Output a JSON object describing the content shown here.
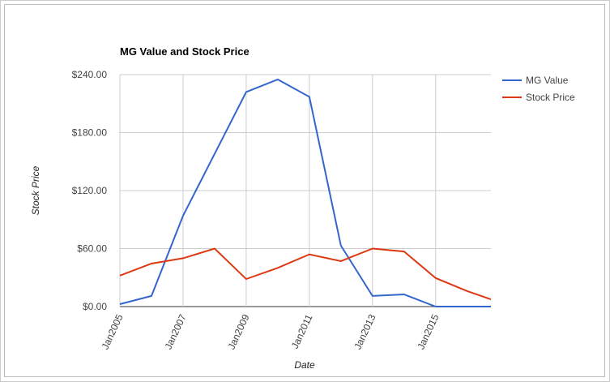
{
  "chart_data": {
    "type": "line",
    "title": "MG Value and Stock Price",
    "xlabel": "Date",
    "ylabel": "Stock Price",
    "x": [
      2005,
      2006,
      2007,
      2008,
      2009,
      2010,
      2011,
      2012,
      2013,
      2014,
      2015,
      2016,
      2016.75
    ],
    "series": [
      {
        "name": "MG Value",
        "color": "#3366cc",
        "values": [
          2.5,
          11,
          94,
          158,
          222,
          235,
          217,
          63,
          11,
          12.6,
          0,
          0,
          0
        ]
      },
      {
        "name": "Stock Price",
        "color": "#dc3912",
        "values": [
          32,
          44.5,
          50,
          60,
          28.5,
          40,
          54,
          47,
          60,
          57,
          29.5,
          16,
          7.5
        ]
      }
    ],
    "xlim": [
      2005,
      2016.75
    ],
    "xticks": [
      {
        "value": 2005,
        "label": "Jan2005"
      },
      {
        "value": 2007,
        "label": "Jan2007"
      },
      {
        "value": 2009,
        "label": "Jan2009"
      },
      {
        "value": 2011,
        "label": "Jan2011"
      },
      {
        "value": 2013,
        "label": "Jan2013"
      },
      {
        "value": 2015,
        "label": "Jan2015"
      }
    ],
    "ylim": [
      0,
      240
    ],
    "yticks": [
      {
        "value": 0,
        "label": "$0.00"
      },
      {
        "value": 60,
        "label": "$60.00"
      },
      {
        "value": 120,
        "label": "$120.00"
      },
      {
        "value": 180,
        "label": "$180.00"
      },
      {
        "value": 240,
        "label": "$240.00"
      }
    ],
    "grid": true,
    "legend": "right"
  }
}
